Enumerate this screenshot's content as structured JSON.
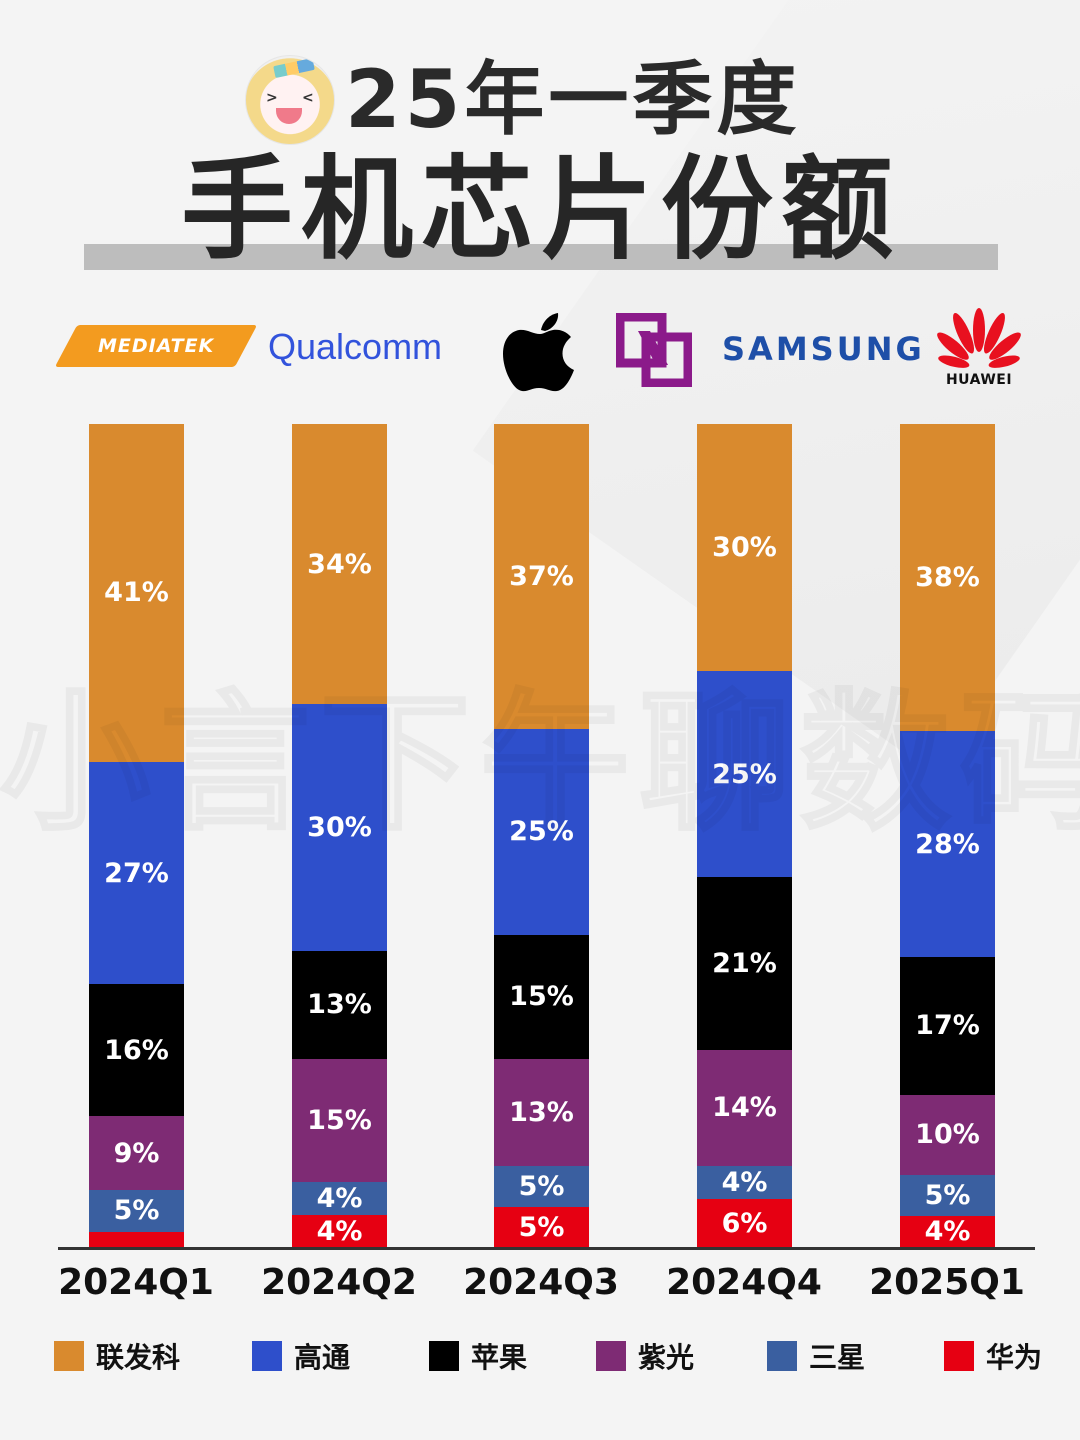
{
  "header": {
    "title_line1": "25年一季度",
    "title_line2": "手机芯片份额",
    "avatar_icon": "anime-avatar-icon"
  },
  "logos": [
    {
      "name": "MEDIATEK",
      "color": "#f39b1f"
    },
    {
      "name": "Qualcomm",
      "color": "#3253dc"
    },
    {
      "name": "Apple",
      "color": "#000000"
    },
    {
      "name": "UNISOC",
      "color": "#8b1a8a"
    },
    {
      "name": "SAMSUNG",
      "color": "#1e4fa8"
    },
    {
      "name": "HUAWEI",
      "color": "#e8101f"
    }
  ],
  "watermark": [
    "小",
    "言",
    "下",
    "午",
    "聊",
    "数",
    "码"
  ],
  "chart_data": {
    "type": "bar",
    "stacked": true,
    "title": "25年一季度 手机芯片份额",
    "xlabel": "",
    "ylabel": "",
    "ylim": [
      0,
      100
    ],
    "grid": false,
    "legend_position": "bottom",
    "categories": [
      "2024Q1",
      "2024Q2",
      "2024Q3",
      "2024Q4",
      "2025Q1"
    ],
    "series": [
      {
        "name": "联发科",
        "color": "#d98a2e",
        "values": [
          41,
          34,
          37,
          30,
          38
        ]
      },
      {
        "name": "高通",
        "color": "#2e4fcb",
        "values": [
          27,
          30,
          25,
          25,
          28
        ]
      },
      {
        "name": "苹果",
        "color": "#000000",
        "values": [
          16,
          13,
          15,
          21,
          17
        ]
      },
      {
        "name": "紫光",
        "color": "#7e2b74",
        "values": [
          9,
          15,
          13,
          14,
          10
        ]
      },
      {
        "name": "三星",
        "color": "#3a5fa0",
        "values": [
          5,
          4,
          5,
          4,
          5
        ]
      },
      {
        "name": "华为",
        "color": "#e60012",
        "values": [
          2,
          4,
          5,
          6,
          4
        ]
      }
    ],
    "labels": [
      [
        "41%",
        "27%",
        "16%",
        "9%",
        "5%",
        ""
      ],
      [
        "34%",
        "30%",
        "13%",
        "15%",
        "4%",
        "4%"
      ],
      [
        "37%",
        "25%",
        "15%",
        "13%",
        "5%",
        "5%"
      ],
      [
        "30%",
        "25%",
        "21%",
        "14%",
        "4%",
        "6%"
      ],
      [
        "38%",
        "28%",
        "17%",
        "10%",
        "5%",
        "4%"
      ]
    ]
  },
  "legend": [
    {
      "label": "联发科",
      "color": "#d98a2e"
    },
    {
      "label": "高通",
      "color": "#2e4fcb"
    },
    {
      "label": "苹果",
      "color": "#000000"
    },
    {
      "label": "紫光",
      "color": "#7e2b74"
    },
    {
      "label": "三星",
      "color": "#3a5fa0"
    },
    {
      "label": "华为",
      "color": "#e60012"
    }
  ]
}
